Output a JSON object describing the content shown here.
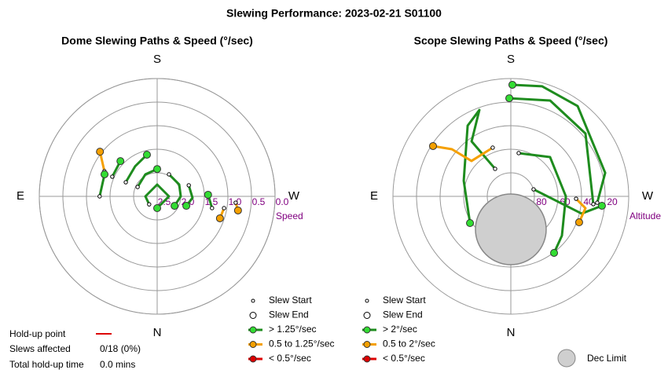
{
  "title": "Slewing Performance: 2023-02-21 S01100",
  "chart_data": [
    {
      "type": "polar",
      "title": "Dome Slewing Paths & Speed (°/sec)",
      "r_label": "Speed",
      "directions": [
        "N",
        "E",
        "S",
        "W"
      ],
      "rlim": [
        2.5,
        {
          "value": 0,
          "label": "0.0"
        }
      ],
      "rticks": [
        2.5,
        {
          "value": 2,
          "label": "2.0"
        },
        1.5,
        {
          "value": 1,
          "label": "1.0"
        },
        0.5,
        {
          "value": 0,
          "label": "0.0"
        }
      ],
      "series": [
        {
          "color": "#f5a000",
          "x": [
            115.5,
            128
          ],
          "values": [
            1.26,
            0.96
          ]
        },
        {
          "color": "#1e8c1e",
          "x": [
            90,
            112.7
          ],
          "values": [
            1.28,
            1.29
          ]
        },
        {
          "color": "#1e8c1e",
          "x": [
            113.7,
            133.8
          ],
          "values": [
            1.46,
            1.42
          ]
        },
        {
          "color": "#1e8c1e",
          "x": [
            114.2,
            143.6,
            166.2
          ],
          "values": [
            1.77,
            1.71,
            1.59
          ]
        },
        {
          "color": "#1e8c1e",
          "x": [
            115.6,
            151.8,
            180
          ],
          "values": [
            2.04,
            1.97,
            1.92
          ]
        },
        {
          "color": "#1e8c1e",
          "x": [
            208.2,
            241.8,
            270,
            298.6
          ],
          "values": [
            1.97,
            1.97,
            2.0,
            2.08
          ]
        },
        {
          "color": "#1e8c1e",
          "x": [
            45,
            90,
            180,
            270,
            360
          ],
          "values": [
            2.26,
            2.25,
            2.25,
            2.25,
            2.25
          ]
        },
        {
          "color": "#1e8c1e",
          "x": [
            250.7,
            272.5,
            288
          ],
          "values": [
            1.79,
            1.75,
            1.85
          ]
        },
        {
          "color": "#1e8c1e",
          "x": [
            282.1,
            268.2
          ],
          "values": [
            1.31,
            1.42
          ]
        },
        {
          "color": "#f5a000",
          "x": [
            280,
            289.3
          ],
          "values": [
            1.06,
            1.09
          ]
        },
        {
          "color": "#f5a000",
          "x": [
            274.6,
            279.9
          ],
          "values": [
            0.83,
            0.76
          ]
        }
      ],
      "legend": [
        {
          "label": "Slew Start",
          "marker": "start"
        },
        {
          "label": "Slew End",
          "marker": "end"
        },
        {
          "label": "> 1.25°/sec",
          "color": "#1e8c1e"
        },
        {
          "label": "0.5 to 1.25°/sec",
          "color": "#f5a000"
        },
        {
          "label": "< 0.5°/sec",
          "color": "#dd0000"
        }
      ]
    },
    {
      "type": "polar",
      "title": "Scope Slewing Paths & Speed (°/sec)",
      "r_label": "Altitude",
      "directions": [
        "N",
        "E",
        "S",
        "W"
      ],
      "rlim": [
        100,
        0
      ],
      "rticks": [
        80,
        60,
        40,
        20
      ],
      "series": [
        {
          "color": "#1e8c1e",
          "x": [
            274.2,
            256,
            216.5,
            195.9,
            180.8
          ],
          "values": [
            26.5,
            17.5,
            4.7,
            2.9,
            5.3
          ]
        },
        {
          "color": "#1e8c1e",
          "x": [
            275.4,
            229.9,
            202.3,
            179.1
          ],
          "values": [
            29.7,
            17.2,
            12.1,
            16.7
          ]
        },
        {
          "color": "#1e8c1e",
          "x": [
            150.3,
            144.5,
            160,
            148.6,
            108.4,
            56.8
          ],
          "values": [
            73.1,
            42.7,
            22,
            29.7,
            57.9,
            58.6
          ]
        },
        {
          "color": "#f5a000",
          "x": [
            159.6,
            132,
            128.7,
            122.9
          ],
          "values": [
            55.9,
            55.1,
            36,
            21.4
          ]
        },
        {
          "color": "#1e8c1e",
          "x": [
            190.3,
            225,
            270,
            307.6,
            322.6
          ],
          "values": [
            62.7,
            52.9,
            53.3,
            45.3,
            39.6
          ]
        },
        {
          "color": "#1e8c1e",
          "x": [
            252.8,
            283.7,
            275.9
          ],
          "values": [
            79.8,
            38.2,
            22.3
          ]
        },
        {
          "color": "#f5a000",
          "x": [
            272.1,
            279,
            290.8
          ],
          "values": [
            44.6,
            35.9,
            38
          ]
        }
      ],
      "legend": [
        {
          "label": "Slew Start",
          "marker": "start"
        },
        {
          "label": "Slew End",
          "marker": "end"
        },
        {
          "label": "> 2°/sec",
          "color": "#1e8c1e"
        },
        {
          "label": "0.5 to 2°/sec",
          "color": "#f5a000"
        },
        {
          "label": "< 0.5°/sec",
          "color": "#dd0000"
        }
      ],
      "dec_limit_label": "Dec Limit"
    }
  ],
  "holdup": {
    "point_label": "Hold-up point",
    "slews_label": "Slews affected",
    "slews_value": "0/18 (0%)",
    "time_label": "Total hold-up time",
    "time_value": "0.0 mins"
  }
}
